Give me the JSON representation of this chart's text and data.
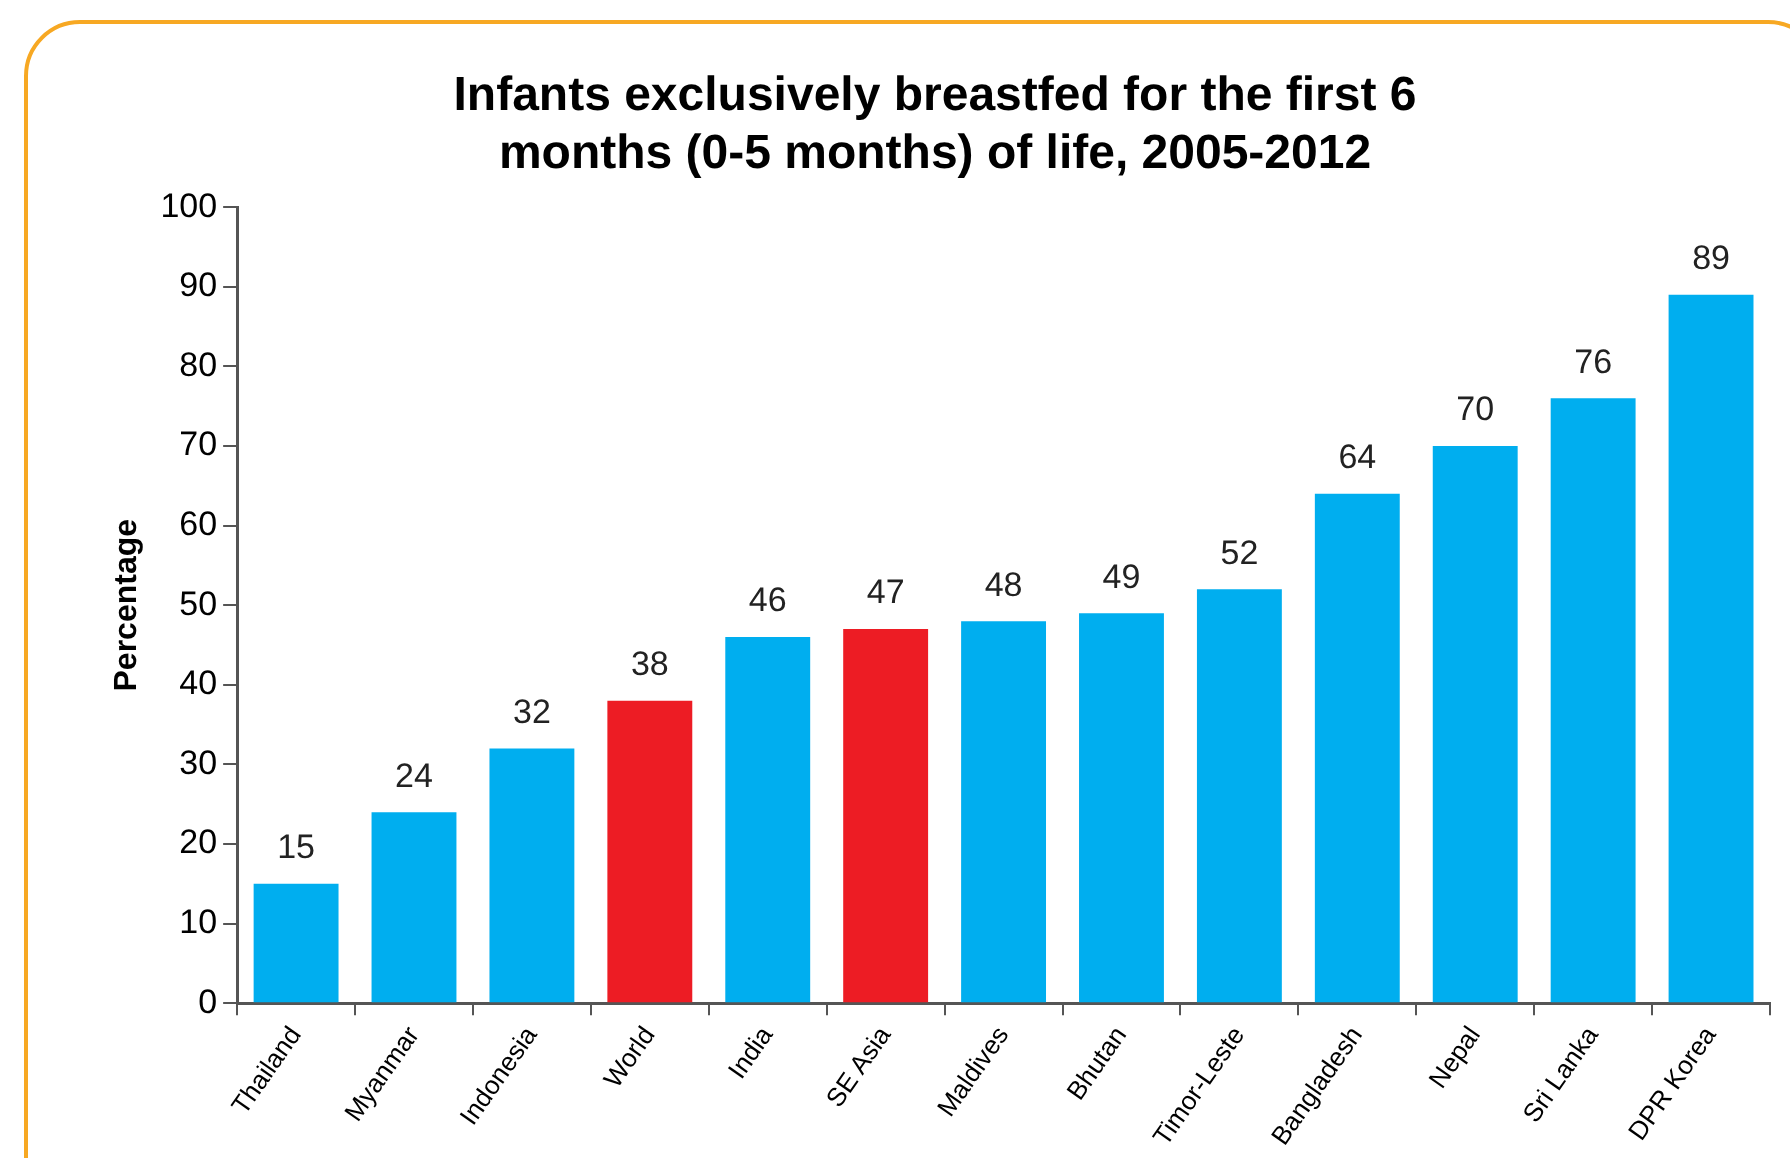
{
  "chart_data": {
    "type": "bar",
    "title": "Infants exclusively breastfed for the first 6 months (0-5 months) of life, 2005-2012",
    "ylabel": "Percentage",
    "categories": [
      "Thailand",
      "Myanmar",
      "Indonesia",
      "World",
      "India",
      "SE Asia",
      "Maldives",
      "Bhutan",
      "Timor-Leste",
      "Bangladesh",
      "Nepal",
      "Sri Lanka",
      "DPR Korea"
    ],
    "values": [
      15,
      24,
      32,
      38,
      46,
      47,
      48,
      49,
      52,
      64,
      70,
      76,
      89
    ],
    "colors": [
      "#00aeef",
      "#00aeef",
      "#00aeef",
      "#ed1c24",
      "#00aeef",
      "#ed1c24",
      "#00aeef",
      "#00aeef",
      "#00aeef",
      "#00aeef",
      "#00aeef",
      "#00aeef",
      "#00aeef"
    ],
    "ylim": [
      0,
      100
    ],
    "yticks": [
      0,
      10,
      20,
      30,
      40,
      50,
      60,
      70,
      80,
      90,
      100
    ],
    "grid": false,
    "legend": false,
    "data_labels": true
  }
}
